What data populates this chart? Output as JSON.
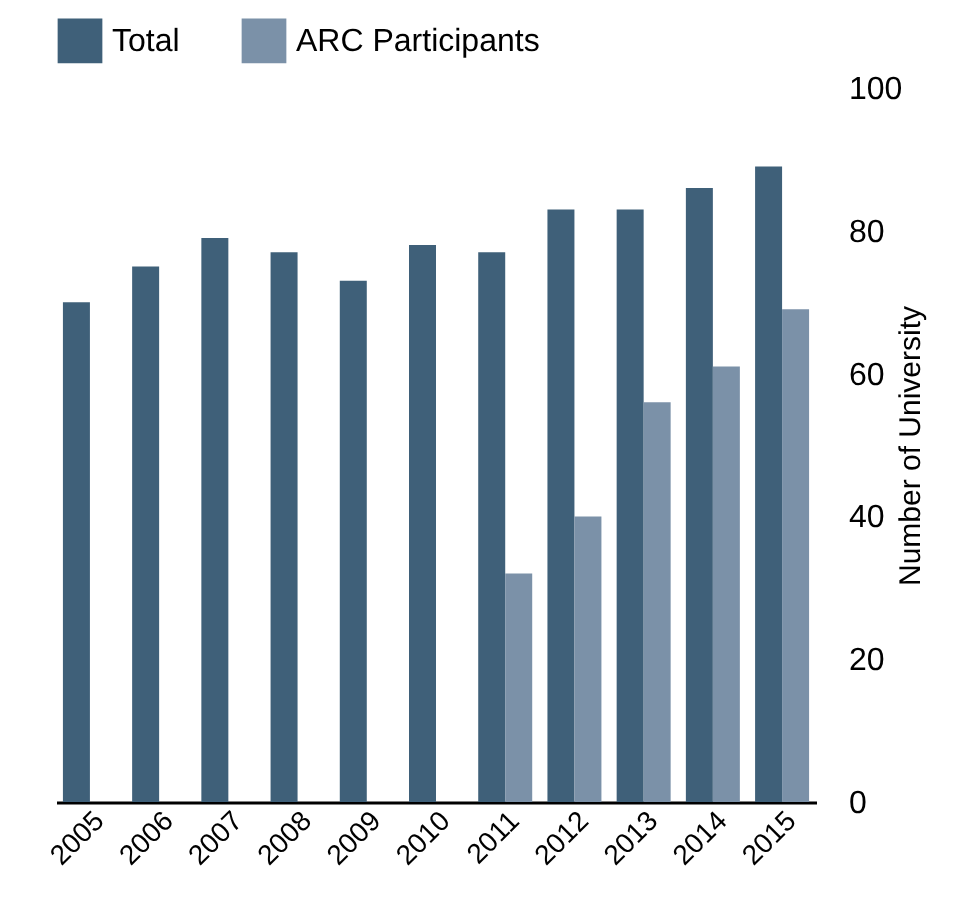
{
  "chart_data": {
    "type": "bar",
    "ylabel": "Number of University",
    "categories": [
      "2005",
      "2006",
      "2007",
      "2008",
      "2009",
      "2010",
      "2011",
      "2012",
      "2013",
      "2014",
      "2015"
    ],
    "series": [
      {
        "name": "Total",
        "color": "#3f6079",
        "values": [
          70,
          75,
          79,
          77,
          73,
          78,
          77,
          83,
          83,
          86,
          89
        ]
      },
      {
        "name": "ARC Participants",
        "color": "#7b91a8",
        "values": [
          null,
          null,
          null,
          null,
          null,
          null,
          32,
          40,
          56,
          61,
          69
        ]
      }
    ],
    "ylim": [
      0,
      100
    ],
    "yticks": [
      0,
      20,
      40,
      60,
      80,
      100
    ],
    "legend": "top",
    "grid": false
  }
}
